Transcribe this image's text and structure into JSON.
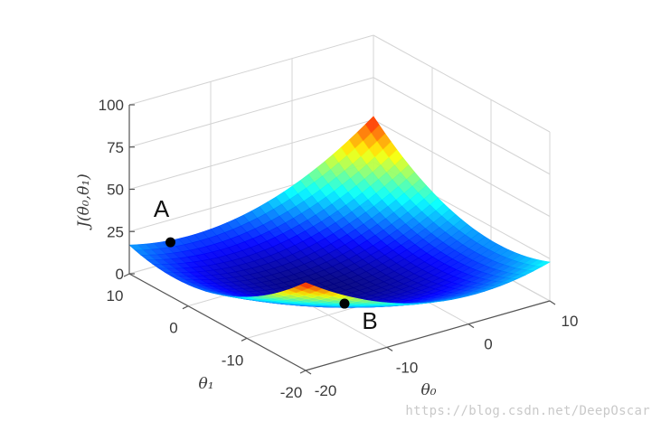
{
  "chart_data": {
    "type": "surface",
    "title": "",
    "zlabel": "J(θ₀,θ₁)",
    "xlabel": "θ₀",
    "ylabel": "θ₁",
    "z_ticks": [
      "0",
      "25",
      "50",
      "75",
      "100"
    ],
    "x_ticks": [
      "-20",
      "-10",
      "0",
      "10"
    ],
    "y_ticks": [
      "-20",
      "-10",
      "0",
      "10"
    ],
    "zlim": [
      0,
      100
    ],
    "xlim": [
      -20,
      10
    ],
    "ylim": [
      -20,
      10
    ],
    "grid": true,
    "colormap": "jet",
    "points": [
      {
        "label": "A",
        "theta0": -20,
        "theta1": 3,
        "J": 32
      },
      {
        "label": "B",
        "theta0": -8,
        "theta1": -10,
        "J": 4
      }
    ]
  },
  "watermark": "https://blog.csdn.net/DeepOscar"
}
